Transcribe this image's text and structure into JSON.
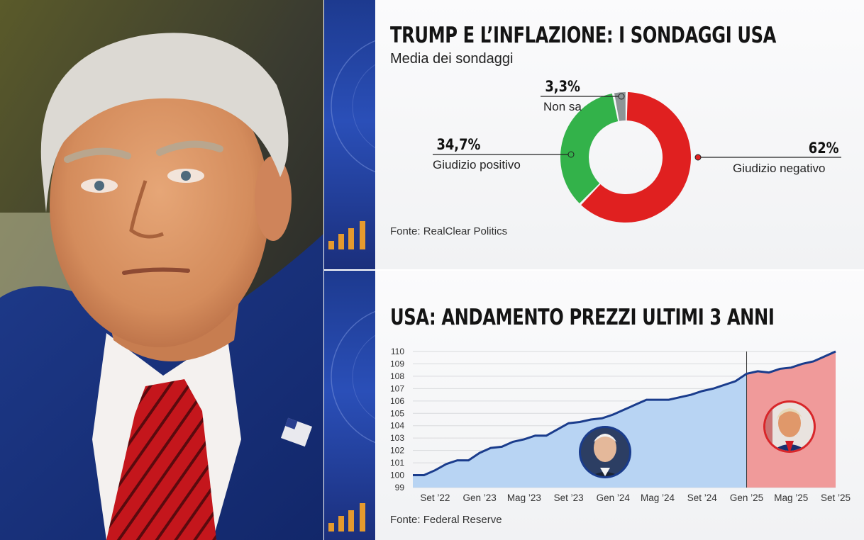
{
  "chart_data": [
    {
      "type": "pie",
      "title": "TRUMP E L’INFLAZIONE: I SONDAGGI USA",
      "subtitle": "Media dei sondaggi",
      "slices": [
        {
          "label": "Giudizio negativo",
          "value": 62,
          "display": "62%",
          "color": "#e02020"
        },
        {
          "label": "Giudizio positivo",
          "value": 34.7,
          "display": "34,7%",
          "color": "#33b24a"
        },
        {
          "label": "Non sa",
          "value": 3.3,
          "display": "3,3%",
          "color": "#8d9596"
        }
      ],
      "source": "Fonte: RealClear Politics"
    },
    {
      "type": "area",
      "title": "USA: ANDAMENTO PREZZI ULTIMI 3 ANNI",
      "x_labels": [
        "Set ’22",
        "Gen ’23",
        "Mag ’23",
        "Set ’23",
        "Gen ’24",
        "Mag ’24",
        "Set ’24",
        "Gen ’25",
        "Mag ’25",
        "Set ’25"
      ],
      "y_ticks": [
        99,
        100,
        101,
        102,
        103,
        104,
        105,
        106,
        107,
        108,
        109,
        110
      ],
      "ylim": [
        99,
        110
      ],
      "x_range": [
        "2022-07",
        "2025-09"
      ],
      "points": [
        [
          "2022-07",
          100.0
        ],
        [
          "2022-08",
          100.0
        ],
        [
          "2022-09",
          100.4
        ],
        [
          "2022-10",
          100.9
        ],
        [
          "2022-11",
          101.2
        ],
        [
          "2022-12",
          101.2
        ],
        [
          "2023-01",
          101.8
        ],
        [
          "2023-02",
          102.2
        ],
        [
          "2023-03",
          102.3
        ],
        [
          "2023-04",
          102.7
        ],
        [
          "2023-05",
          102.9
        ],
        [
          "2023-06",
          103.2
        ],
        [
          "2023-07",
          103.2
        ],
        [
          "2023-08",
          103.7
        ],
        [
          "2023-09",
          104.2
        ],
        [
          "2023-10",
          104.3
        ],
        [
          "2023-11",
          104.5
        ],
        [
          "2023-12",
          104.6
        ],
        [
          "2024-01",
          104.9
        ],
        [
          "2024-02",
          105.3
        ],
        [
          "2024-03",
          105.7
        ],
        [
          "2024-04",
          106.1
        ],
        [
          "2024-05",
          106.1
        ],
        [
          "2024-06",
          106.1
        ],
        [
          "2024-07",
          106.3
        ],
        [
          "2024-08",
          106.5
        ],
        [
          "2024-09",
          106.8
        ],
        [
          "2024-10",
          107.0
        ],
        [
          "2024-11",
          107.3
        ],
        [
          "2024-12",
          107.6
        ],
        [
          "2025-01",
          108.2
        ],
        [
          "2025-02",
          108.4
        ],
        [
          "2025-03",
          108.3
        ],
        [
          "2025-04",
          108.6
        ],
        [
          "2025-05",
          108.7
        ],
        [
          "2025-06",
          109.0
        ],
        [
          "2025-07",
          109.2
        ],
        [
          "2025-08",
          109.6
        ],
        [
          "2025-09",
          110.0
        ]
      ],
      "split_date": "2025-01",
      "colors": {
        "before_fill": "#b8d4f3",
        "after_fill": "#f09a9a",
        "line": "#1a3c8c"
      },
      "source": "Fonte: Federal Reserve"
    }
  ]
}
